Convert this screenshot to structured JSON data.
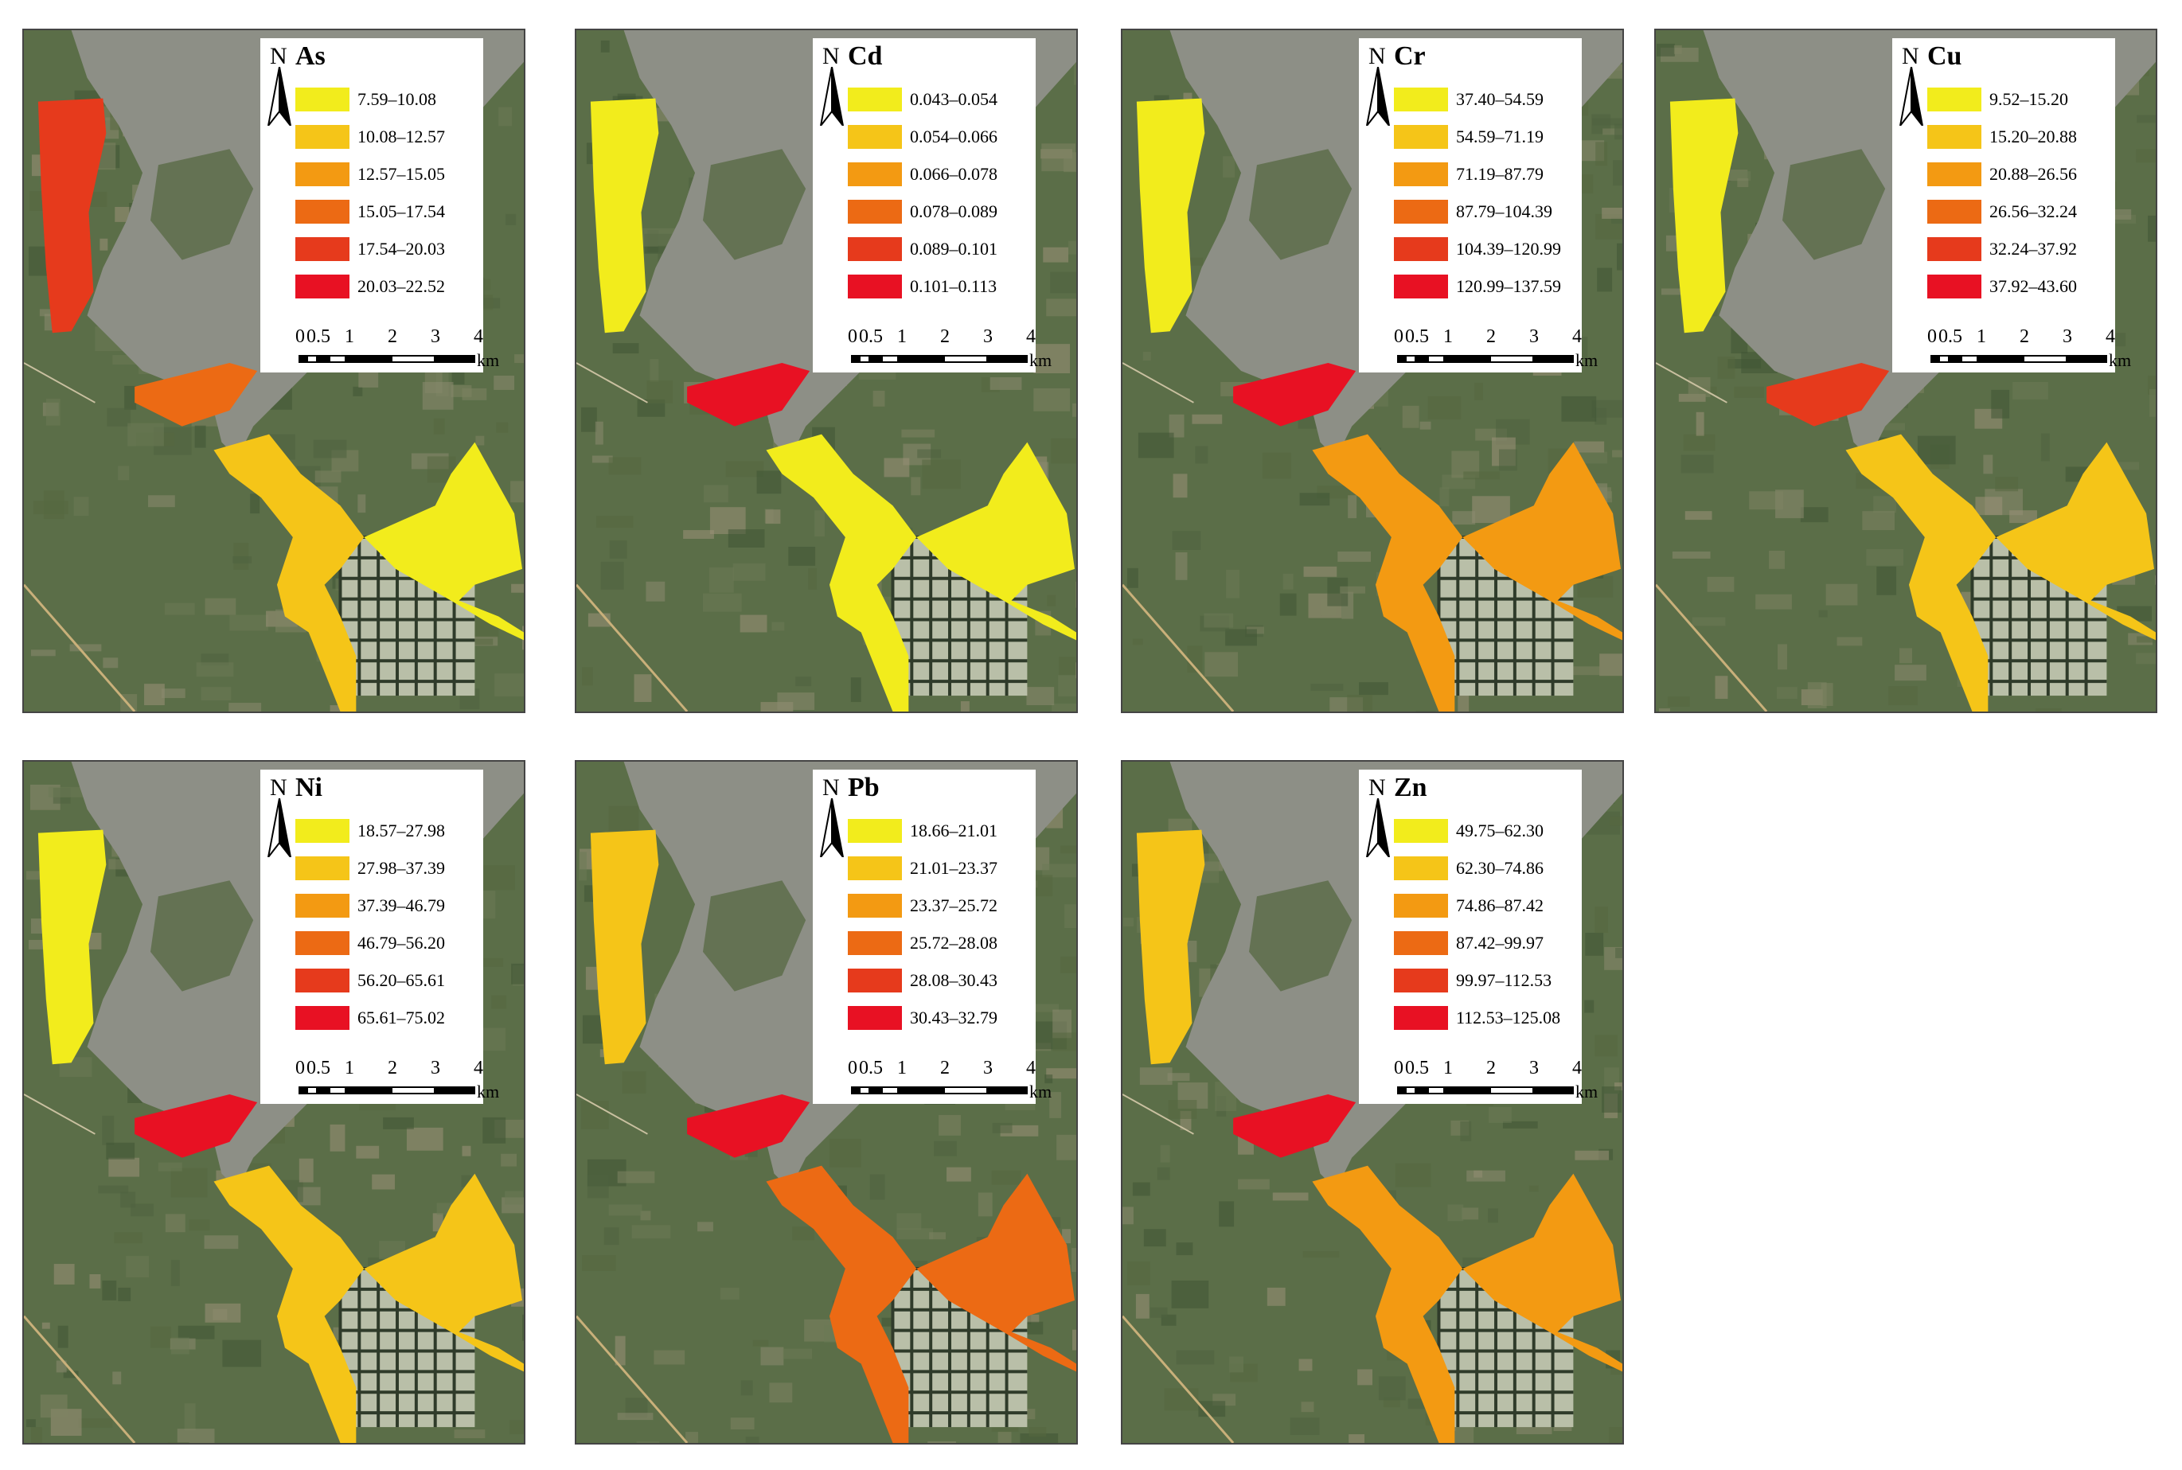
{
  "north_label": "N",
  "scale": {
    "ticks": [
      "0",
      "0.5",
      "1",
      "2",
      "3",
      "4"
    ],
    "unit": "km"
  },
  "colors": [
    "#f2ec1c",
    "#f5c518",
    "#f39a12",
    "#ec6a14",
    "#e63a1c",
    "#e81123"
  ],
  "panels": [
    {
      "element": "As",
      "classes": [
        "7.59–10.08",
        "10.08–12.57",
        "12.57–15.05",
        "15.05–17.54",
        "17.54–20.03",
        "20.03–22.52"
      ]
    },
    {
      "element": "Cd",
      "classes": [
        "0.043–0.054",
        "0.054–0.066",
        "0.066–0.078",
        "0.078–0.089",
        "0.089–0.101",
        "0.101–0.113"
      ]
    },
    {
      "element": "Cr",
      "classes": [
        "37.40–54.59",
        "54.59–71.19",
        "71.19–87.79",
        "87.79–104.39",
        "104.39–120.99",
        "120.99–137.59"
      ]
    },
    {
      "element": "Cu",
      "classes": [
        "9.52–15.20",
        "15.20–20.88",
        "20.88–26.56",
        "26.56–32.24",
        "32.24–37.92",
        "37.92–43.60"
      ]
    },
    {
      "element": "Ni",
      "classes": [
        "18.57–27.98",
        "27.98–37.39",
        "37.39–46.79",
        "46.79–56.20",
        "56.20–65.61",
        "65.61–75.02"
      ]
    },
    {
      "element": "Pb",
      "classes": [
        "18.66–21.01",
        "21.01–23.37",
        "23.37–25.72",
        "25.72–28.08",
        "28.08–30.43",
        "30.43–32.79"
      ]
    },
    {
      "element": "Zn",
      "classes": [
        "49.75–62.30",
        "62.30–74.86",
        "74.86–87.42",
        "87.42–99.97",
        "99.97–112.53",
        "112.53–125.08"
      ]
    }
  ],
  "zone_levels": [
    {
      "west": 4,
      "mid": 3,
      "south": 1,
      "east": 0
    },
    {
      "west": 0,
      "mid": 5,
      "south": 0,
      "east": 0
    },
    {
      "west": 0,
      "mid": 5,
      "south": 2,
      "east": 2
    },
    {
      "west": 0,
      "mid": 4,
      "south": 1,
      "east": 1
    },
    {
      "west": 0,
      "mid": 5,
      "south": 1,
      "east": 1
    },
    {
      "west": 1,
      "mid": 5,
      "south": 3,
      "east": 3
    },
    {
      "west": 1,
      "mid": 5,
      "south": 2,
      "east": 2
    }
  ]
}
